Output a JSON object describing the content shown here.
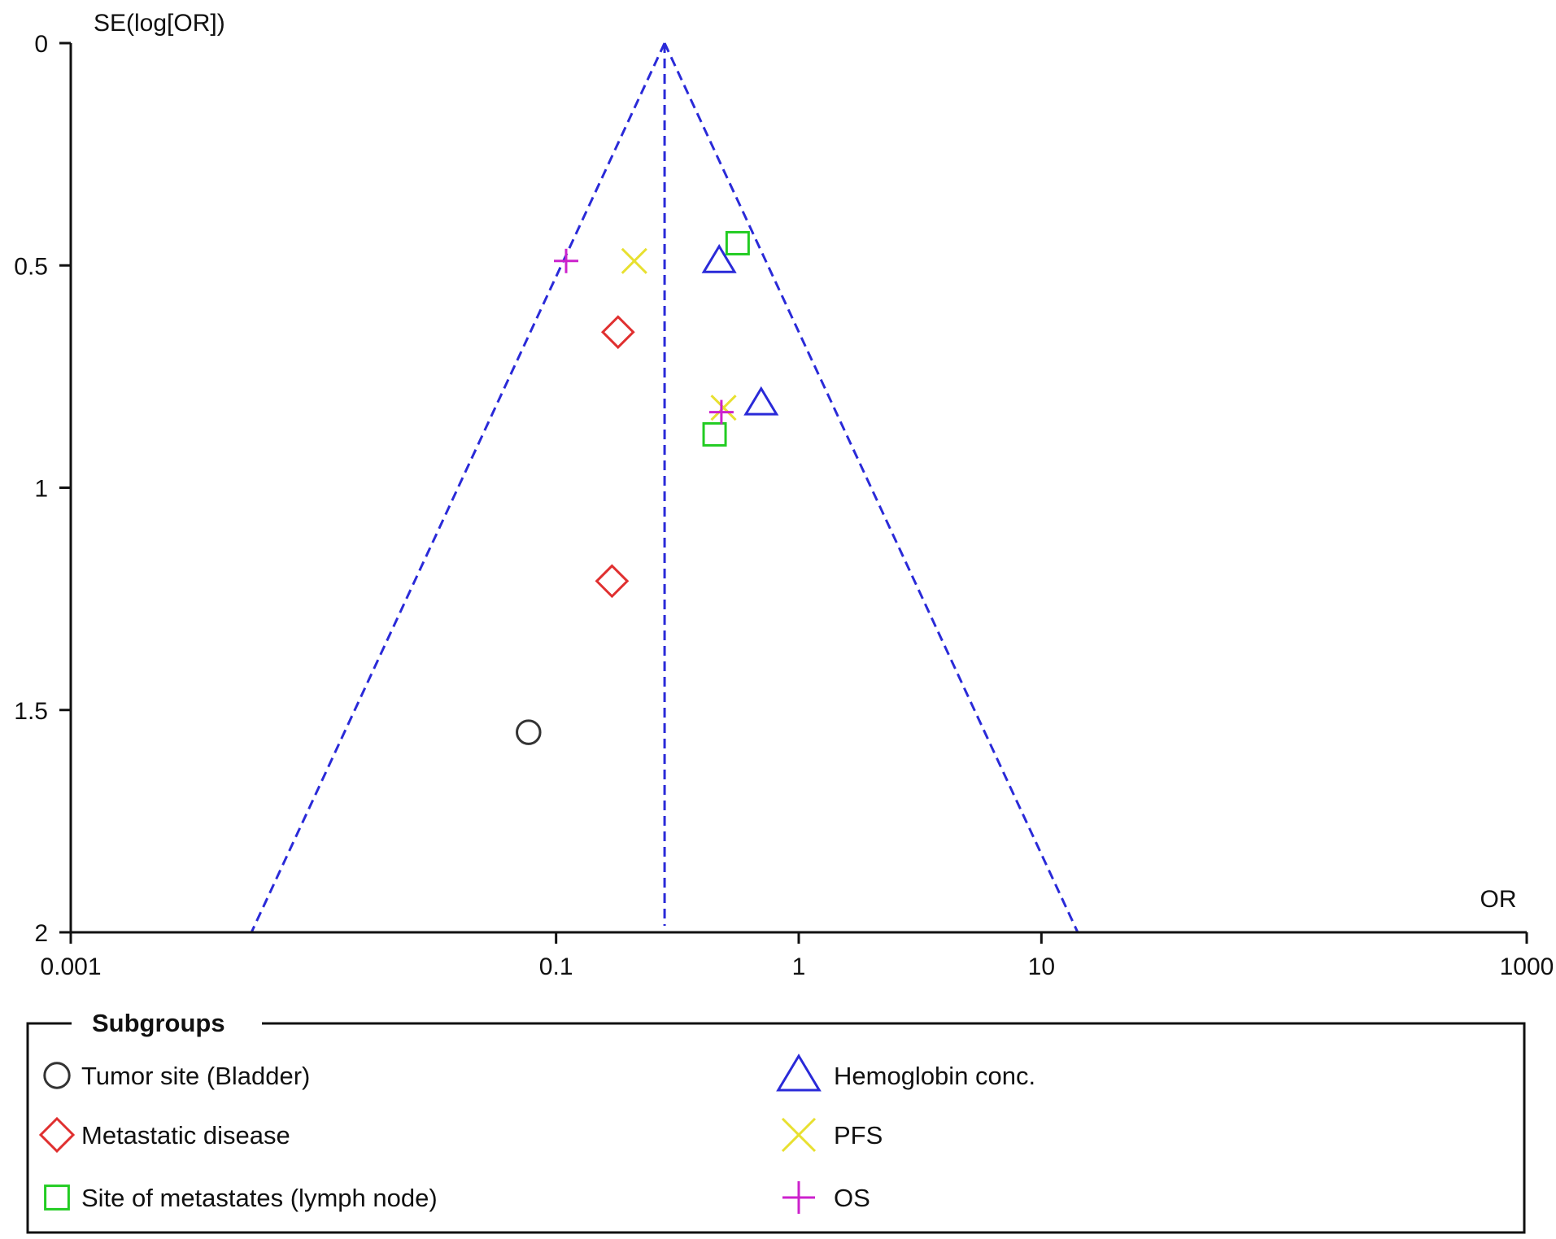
{
  "chart_data": {
    "type": "scatter",
    "subtype": "funnel plot",
    "xlabel": "OR",
    "ylabel": "SE(log[OR])",
    "x_scale": "log",
    "xlim": [
      0.001,
      1000
    ],
    "ylim": [
      0,
      2
    ],
    "y_inverted": true,
    "x_ticks": [
      {
        "value": 0.001,
        "label": "0.001"
      },
      {
        "value": 0.1,
        "label": "0.1"
      },
      {
        "value": 1,
        "label": "1"
      },
      {
        "value": 10,
        "label": "10"
      },
      {
        "value": 1000,
        "label": "1000"
      }
    ],
    "y_ticks": [
      {
        "value": 0,
        "label": "0"
      },
      {
        "value": 0.5,
        "label": "0.5"
      },
      {
        "value": 1,
        "label": "1"
      },
      {
        "value": 1.5,
        "label": "1.5"
      },
      {
        "value": 2,
        "label": "2"
      }
    ],
    "pooled_or": 0.28,
    "funnel_color": "#2a2ad8",
    "legend_title": "Subgroups",
    "series": [
      {
        "name": "Tumor site (Bladder)",
        "marker": "circle",
        "color": "#333333",
        "points": [
          {
            "x": 0.077,
            "se": 1.55
          }
        ]
      },
      {
        "name": "Metastatic disease",
        "marker": "diamond",
        "color": "#e03030",
        "points": [
          {
            "x": 0.18,
            "se": 0.65
          },
          {
            "x": 0.17,
            "se": 1.21
          }
        ]
      },
      {
        "name": "Site of metastates (lymph node)",
        "marker": "square",
        "color": "#22cc22",
        "points": [
          {
            "x": 0.56,
            "se": 0.45
          },
          {
            "x": 0.45,
            "se": 0.88
          }
        ]
      },
      {
        "name": "Hemoglobin conc.",
        "marker": "triangle",
        "color": "#2a2ad8",
        "points": [
          {
            "x": 0.47,
            "se": 0.49
          },
          {
            "x": 0.7,
            "se": 0.81
          }
        ]
      },
      {
        "name": "PFS",
        "marker": "x",
        "color": "#e8e030",
        "points": [
          {
            "x": 0.21,
            "se": 0.49
          },
          {
            "x": 0.49,
            "se": 0.82
          }
        ]
      },
      {
        "name": "OS",
        "marker": "plus",
        "color": "#cc22cc",
        "points": [
          {
            "x": 0.11,
            "se": 0.49
          },
          {
            "x": 0.48,
            "se": 0.83
          }
        ]
      }
    ]
  }
}
